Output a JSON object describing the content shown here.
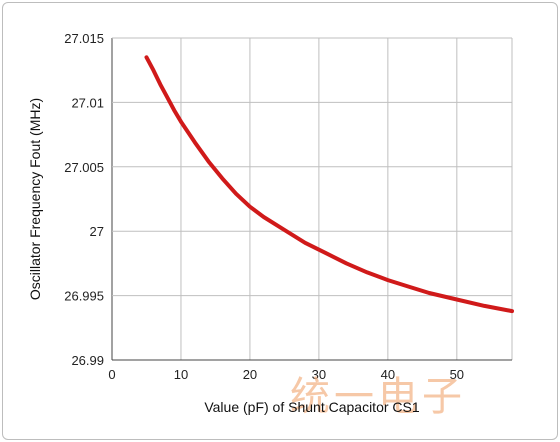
{
  "chart_data": {
    "type": "line",
    "title": "",
    "xlabel": "Value (pF) of Shunt Capacitor CS1",
    "ylabel": "Oscillator Frequency Fout (MHz)",
    "xlim": [
      0,
      58
    ],
    "ylim": [
      26.99,
      27.015
    ],
    "x_ticks": [
      {
        "v": 0,
        "label": "0"
      },
      {
        "v": 10,
        "label": "10"
      },
      {
        "v": 20,
        "label": "20"
      },
      {
        "v": 30,
        "label": "30"
      },
      {
        "v": 40,
        "label": "40"
      },
      {
        "v": 50,
        "label": "50"
      }
    ],
    "y_ticks": [
      {
        "v": 26.99,
        "label": "26.99"
      },
      {
        "v": 26.995,
        "label": "26.995"
      },
      {
        "v": 27.0,
        "label": "27"
      },
      {
        "v": 27.005,
        "label": "27.005"
      },
      {
        "v": 27.01,
        "label": "27.01"
      },
      {
        "v": 27.015,
        "label": "27.015"
      }
    ],
    "grid": true,
    "series": [
      {
        "color": "#d01a1a",
        "x": [
          5,
          6,
          7,
          8,
          9,
          10,
          12,
          14,
          16,
          18,
          20,
          22,
          25,
          28,
          31,
          34,
          37,
          40,
          43,
          46,
          50,
          54,
          58
        ],
        "y": [
          27.0135,
          27.0125,
          27.0114,
          27.0104,
          27.0094,
          27.0085,
          27.0069,
          27.0054,
          27.0041,
          27.0029,
          27.0019,
          27.0011,
          27.0001,
          26.9991,
          26.9983,
          26.9975,
          26.9968,
          26.9962,
          26.9957,
          26.9952,
          26.9947,
          26.9942,
          26.9938
        ]
      }
    ]
  },
  "watermark": "统一电子"
}
